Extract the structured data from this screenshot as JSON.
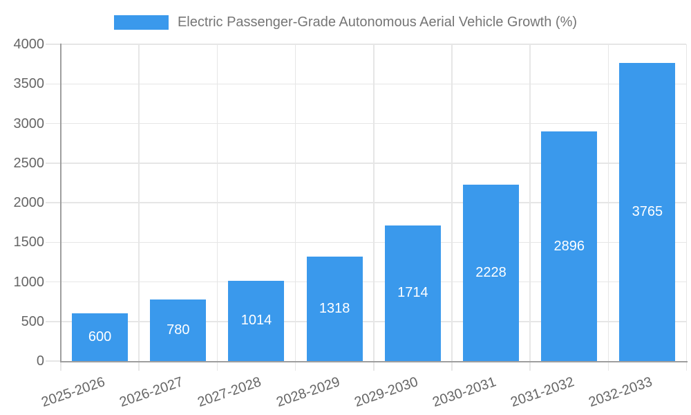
{
  "legend": {
    "label": "Electric Passenger-Grade Autonomous Aerial Vehicle Growth (%)"
  },
  "chart_data": {
    "type": "bar",
    "title": "Electric Passenger-Grade Autonomous Aerial Vehicle Growth (%)",
    "xlabel": "",
    "ylabel": "",
    "categories": [
      "2025-2026",
      "2026-2027",
      "2027-2028",
      "2028-2029",
      "2029-2030",
      "2030-2031",
      "2031-2032",
      "2032-2033"
    ],
    "values": [
      600,
      780,
      1014,
      1318,
      1714,
      2228,
      2896,
      3765
    ],
    "ylim": [
      0,
      4000
    ],
    "ytick_step": 500,
    "ytick_labels": [
      "0",
      "500",
      "1000",
      "1500",
      "2000",
      "2500",
      "3000",
      "3500",
      "4000"
    ],
    "grid": true,
    "legend_position": "top",
    "value_labels_shown": true,
    "colors": {
      "bar": "#3a99ec",
      "value_label": "#ffffff",
      "axis_line": "#9e9e9e",
      "gridline": "#e6e6e6",
      "tick_text": "#666666",
      "title_text": "#757575",
      "background": "#ffffff"
    }
  }
}
